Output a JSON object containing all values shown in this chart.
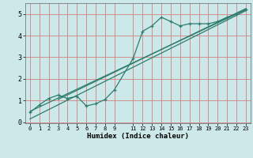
{
  "xlabel": "Humidex (Indice chaleur)",
  "ylabel": "",
  "bg_color": "#cce8e8",
  "grid_color": "#d08080",
  "line_color": "#2e7d6e",
  "xlim": [
    -0.5,
    23.5
  ],
  "ylim": [
    -0.05,
    5.5
  ],
  "xticks": [
    0,
    1,
    2,
    3,
    4,
    5,
    6,
    7,
    8,
    9,
    11,
    12,
    13,
    14,
    15,
    16,
    17,
    18,
    19,
    20,
    21,
    22,
    23
  ],
  "yticks": [
    0,
    1,
    2,
    3,
    4,
    5
  ],
  "data_x": [
    0,
    1,
    2,
    3,
    4,
    5,
    6,
    7,
    8,
    9,
    11,
    12,
    13,
    14,
    15,
    16,
    17,
    18,
    19,
    20,
    21,
    22,
    23
  ],
  "data_y": [
    0.45,
    0.8,
    1.1,
    1.25,
    1.1,
    1.2,
    0.75,
    0.85,
    1.05,
    1.5,
    2.95,
    4.2,
    4.45,
    4.85,
    4.65,
    4.45,
    4.55,
    4.55,
    4.55,
    4.65,
    4.85,
    5.0,
    5.2
  ],
  "reg_line1_x": [
    0,
    23
  ],
  "reg_line1_y": [
    0.15,
    5.15
  ],
  "reg_line2_x": [
    0,
    23
  ],
  "reg_line2_y": [
    0.5,
    5.2
  ],
  "reg_line3_x": [
    3,
    23
  ],
  "reg_line3_y": [
    1.05,
    5.25
  ]
}
